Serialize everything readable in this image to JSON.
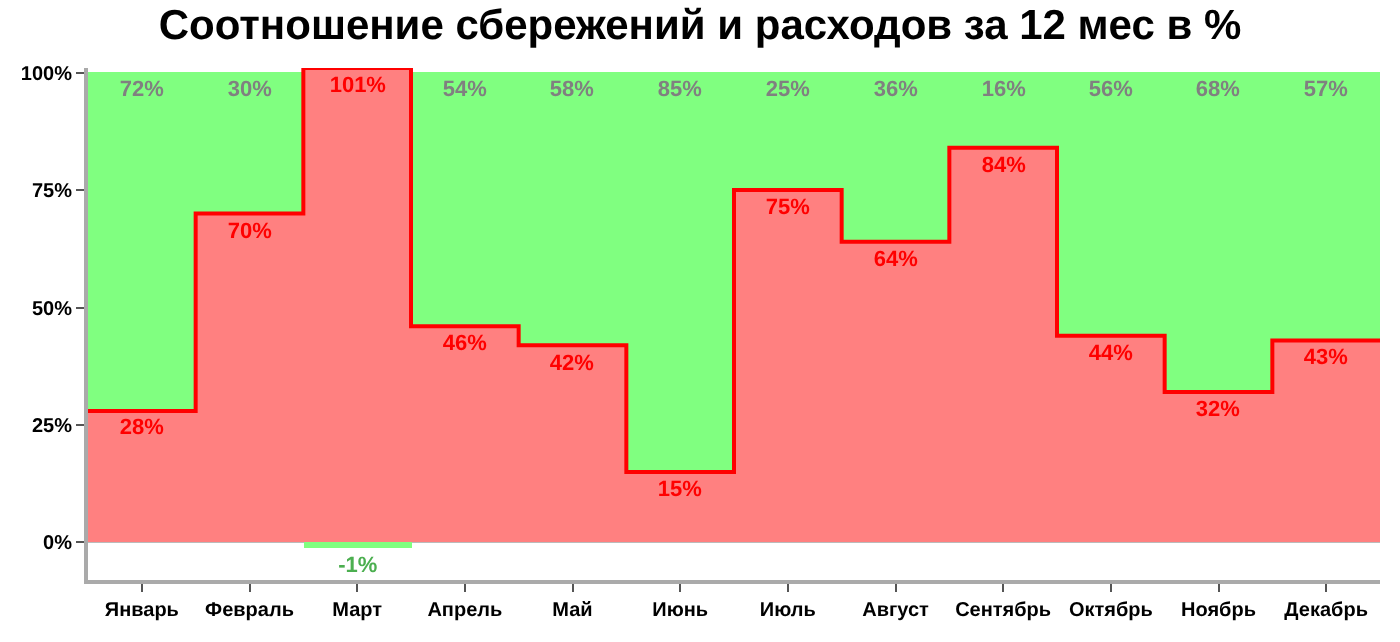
{
  "chart_data": {
    "type": "bar",
    "stacked": true,
    "title": "Соотношение сбережений и расходов за 12 мес в %",
    "categories": [
      "Январь",
      "Февраль",
      "Март",
      "Апрель",
      "Май",
      "Июнь",
      "Июль",
      "Август",
      "Сентябрь",
      "Октябрь",
      "Ноябрь",
      "Декабрь"
    ],
    "series": [
      {
        "color": "#ff8080",
        "values": [
          28,
          70,
          101,
          46,
          42,
          15,
          75,
          64,
          84,
          44,
          32,
          43
        ],
        "value_labels": [
          "28%",
          "70%",
          "101%",
          "46%",
          "42%",
          "15%",
          "75%",
          "64%",
          "84%",
          "44%",
          "32%",
          "43%"
        ]
      },
      {
        "color": "#80ff80",
        "values": [
          72,
          30,
          -1,
          54,
          58,
          85,
          25,
          36,
          16,
          56,
          68,
          57
        ],
        "value_labels": [
          "72%",
          "30%",
          "-1%",
          "54%",
          "58%",
          "85%",
          "25%",
          "36%",
          "16%",
          "56%",
          "68%",
          "57%"
        ]
      }
    ],
    "ylim": [
      -8,
      101
    ],
    "yticks": [
      {
        "value": 0,
        "label": "0%"
      },
      {
        "value": 25,
        "label": "25%"
      },
      {
        "value": 50,
        "label": "50%"
      },
      {
        "value": 75,
        "label": "75%"
      },
      {
        "value": 100,
        "label": "100%"
      }
    ],
    "grid": "y"
  }
}
